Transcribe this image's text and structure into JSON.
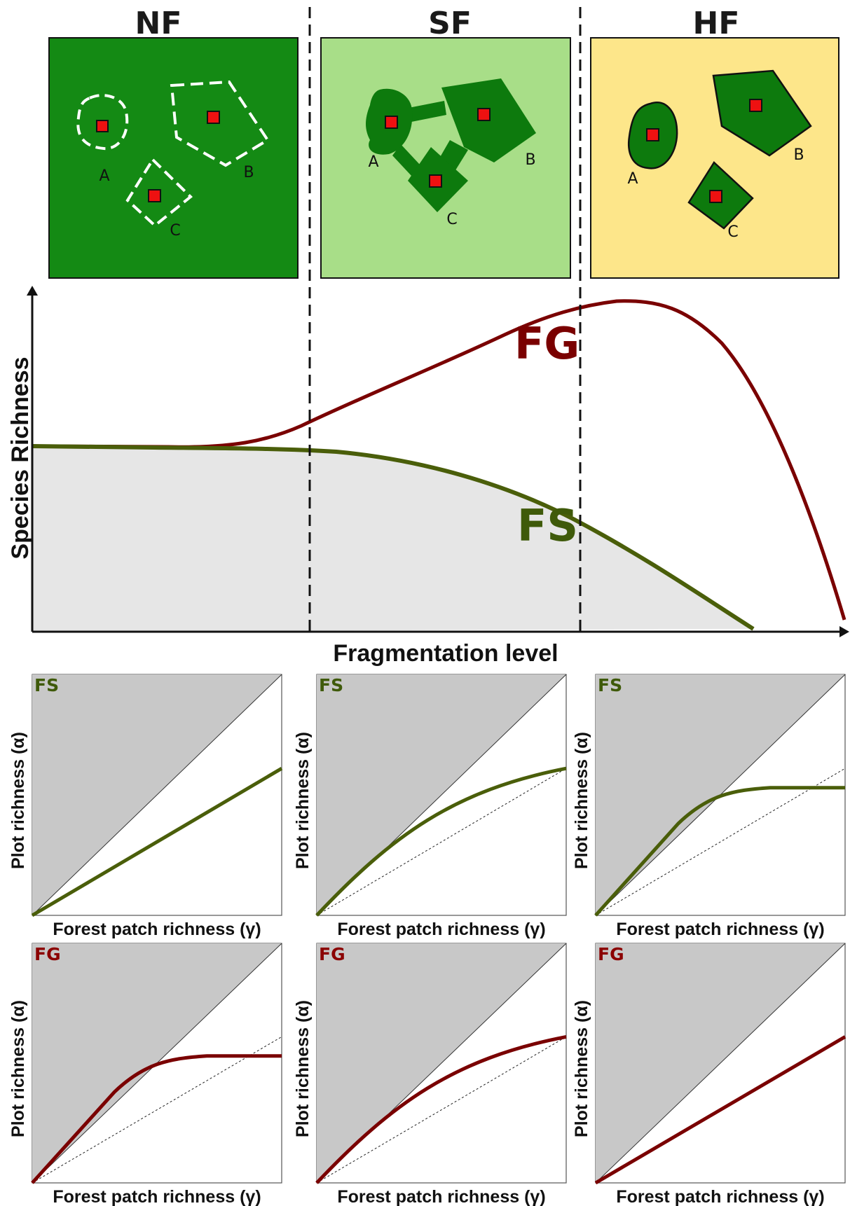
{
  "colors": {
    "nf_background": "#148a14",
    "sf_background": "#a8de88",
    "hf_background": "#fde68a",
    "patch_fill": "#0d7a0d",
    "plot_marker": "#ee1111",
    "fg_curve": "#7a0000",
    "fs_curve": "#4a5e0a",
    "fs_area": "#e6e6e6",
    "panel_shade": "#c8c8c8"
  },
  "top_panels": [
    {
      "title": "NF",
      "patch_labels": [
        "A",
        "B",
        "C"
      ],
      "patch_style": "dashed-outline"
    },
    {
      "title": "SF",
      "patch_labels": [
        "A",
        "B",
        "C"
      ],
      "patch_style": "connected-solid"
    },
    {
      "title": "HF",
      "patch_labels": [
        "A",
        "B",
        "C"
      ],
      "patch_style": "isolated-solid"
    }
  ],
  "main_chart": {
    "xlabel": "Fragmentation level",
    "ylabel": "Species Richness",
    "fg_label": "FG",
    "fs_label": "FS"
  },
  "small_panels": {
    "xlabel": "Forest patch richness (γ)",
    "ylabel": "Plot richness (α)",
    "panels": [
      {
        "tag": "FS",
        "curve": "fs",
        "shape": "linear-below",
        "show_reference": false
      },
      {
        "tag": "FS",
        "curve": "fs",
        "shape": "concave-above",
        "show_reference": true
      },
      {
        "tag": "FS",
        "curve": "fs",
        "shape": "saturating",
        "show_reference": true
      },
      {
        "tag": "FG",
        "curve": "fg",
        "shape": "saturating",
        "show_reference": true
      },
      {
        "tag": "FG",
        "curve": "fg",
        "shape": "concave-above",
        "show_reference": true
      },
      {
        "tag": "FG",
        "curve": "fg",
        "shape": "linear-below",
        "show_reference": false
      }
    ]
  }
}
